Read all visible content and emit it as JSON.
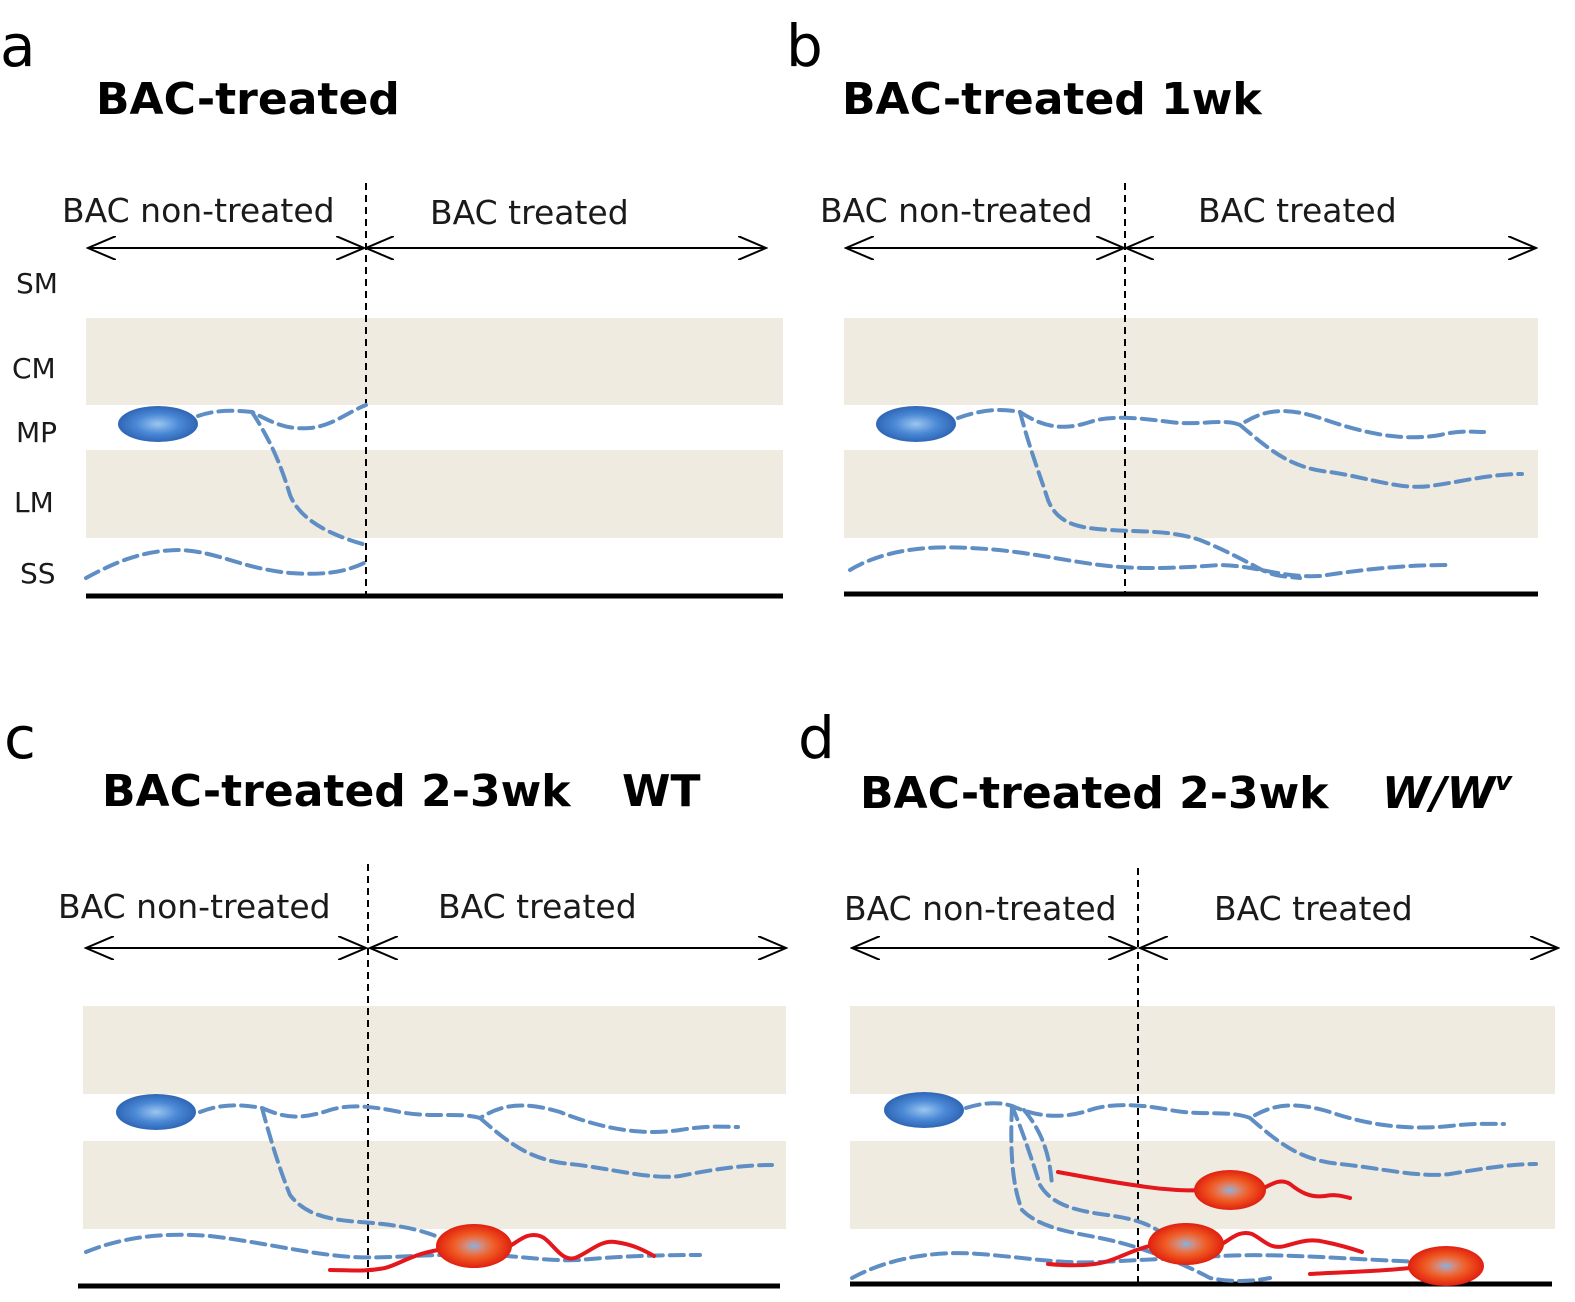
{
  "panels": [
    {
      "letter": "a",
      "title": "BAC-treated",
      "left_region": "BAC non-treated",
      "right_region": "BAC treated",
      "layers": [
        "SM",
        "CM",
        "MP",
        "LM",
        "SS"
      ]
    },
    {
      "letter": "b",
      "title": "BAC-treated 1wk",
      "left_region": "BAC non-treated",
      "right_region": "BAC treated"
    },
    {
      "letter": "c",
      "title": "BAC-treated 2-3wk",
      "genotype": "WT",
      "left_region": "BAC non-treated",
      "right_region": "BAC treated"
    },
    {
      "letter": "d",
      "title": "BAC-treated 2-3wk",
      "genotype": "W/W",
      "genotype_superscript": "v",
      "left_region": "BAC non-treated",
      "right_region": "BAC treated"
    }
  ],
  "colors": {
    "band": "#efebe1",
    "neuron": "#3a78c9",
    "fiber": "#5f8ec4",
    "icc_cell": "#e8461f",
    "icc_fiber": "#e4171c"
  }
}
